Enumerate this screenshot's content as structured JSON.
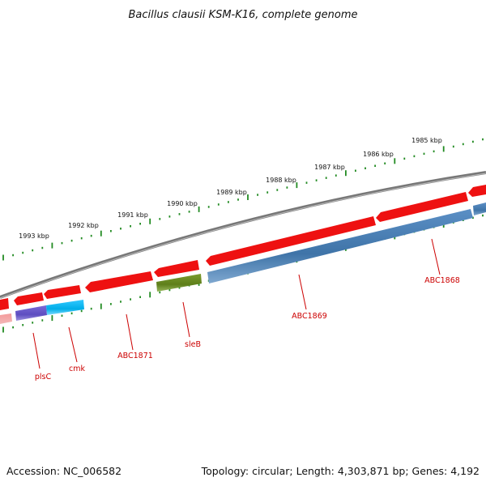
{
  "title": "Bacillus clausii KSM-K16, complete genome",
  "accession": "Accession: NC_006582",
  "topology": "Topology: circular; Length: 4,303,871 bp; Genes: 4,192",
  "scale_labels": [
    "1993 kbp",
    "1992 kbp",
    "1991 kbp",
    "1990 kbp",
    "1989 kbp",
    "1988 kbp",
    "1987 kbp",
    "1986 kbp",
    "1985 kbp"
  ],
  "gene_labels": [
    "plsC",
    "cmk",
    "ABC1871",
    "sleB",
    "ABC1869",
    "ABC1868"
  ],
  "colors": {
    "backbone": "#808080",
    "forward_gene": "#ee1111",
    "scale_ticks": "#228b22",
    "label_text": "#cc0000",
    "feature_blue": "#4a7fb5",
    "feature_green": "#6b8e23",
    "feature_cyan": "#00b4ee",
    "feature_purple": "#6a5acd",
    "feature_pink": "#f08080"
  }
}
